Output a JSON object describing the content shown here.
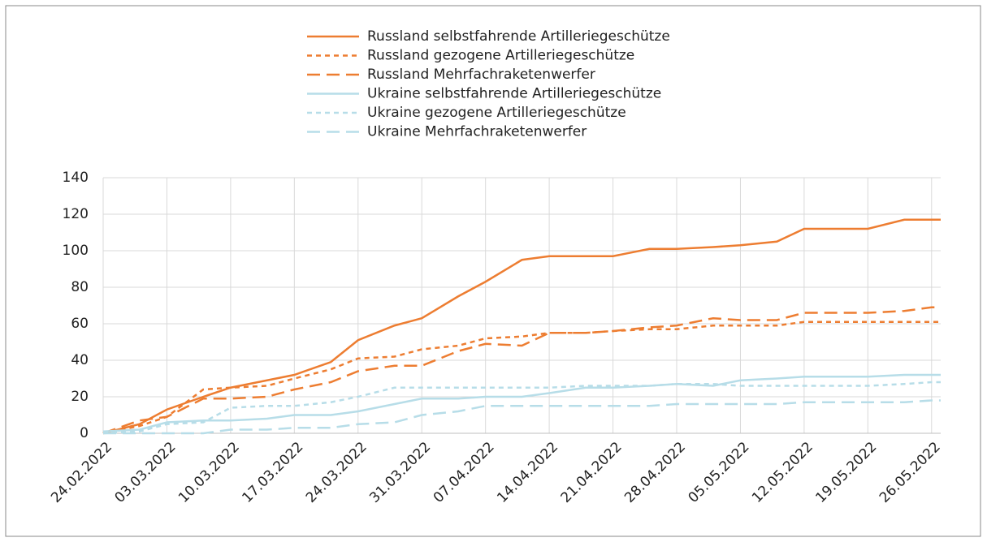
{
  "chart_data": {
    "type": "line",
    "x": [
      "24.02.2022",
      "28.02.2022",
      "03.03.2022",
      "07.03.2022",
      "10.03.2022",
      "14.03.2022",
      "17.03.2022",
      "21.03.2022",
      "24.03.2022",
      "28.03.2022",
      "31.03.2022",
      "04.04.2022",
      "07.04.2022",
      "11.04.2022",
      "14.04.2022",
      "18.04.2022",
      "21.04.2022",
      "25.04.2022",
      "28.04.2022",
      "02.05.2022",
      "05.05.2022",
      "09.05.2022",
      "12.05.2022",
      "16.05.2022",
      "19.05.2022",
      "23.05.2022",
      "26.05.2022",
      "27.05.2022"
    ],
    "series": [
      {
        "name": "Russland selbstfahrende Artilleriegeschütze",
        "color": "#ed7d31",
        "dash": "solid",
        "values": [
          0,
          5,
          13,
          20,
          25,
          29,
          32,
          39,
          51,
          59,
          63,
          75,
          83,
          95,
          97,
          97,
          97,
          101,
          101,
          102,
          103,
          105,
          112,
          112,
          112,
          117,
          117,
          117
        ]
      },
      {
        "name": "Russland gezogene Artilleriegeschütze",
        "color": "#ed7d31",
        "dash": "dot",
        "values": [
          0,
          4,
          9,
          24,
          25,
          26,
          30,
          35,
          41,
          42,
          46,
          48,
          52,
          53,
          55,
          55,
          56,
          57,
          57,
          59,
          59,
          59,
          61,
          61,
          61,
          61,
          61,
          61
        ]
      },
      {
        "name": "Russland Mehrfachraketenwerfer",
        "color": "#ed7d31",
        "dash": "dash",
        "values": [
          0,
          7,
          9,
          19,
          19,
          20,
          24,
          28,
          34,
          37,
          37,
          45,
          49,
          48,
          55,
          55,
          56,
          58,
          59,
          63,
          62,
          62,
          66,
          66,
          66,
          67,
          69,
          69
        ]
      },
      {
        "name": "Ukraine selbstfahrende Artilleriegeschütze",
        "color": "#b7dde8",
        "dash": "solid",
        "values": [
          1,
          2,
          6,
          7,
          7,
          8,
          10,
          10,
          12,
          16,
          19,
          19,
          20,
          20,
          22,
          25,
          25,
          26,
          27,
          26,
          29,
          30,
          31,
          31,
          31,
          32,
          32,
          32
        ]
      },
      {
        "name": "Ukraine gezogene Artilleriegeschütze",
        "color": "#b7dde8",
        "dash": "dot",
        "values": [
          0,
          1,
          5,
          6,
          14,
          15,
          15,
          17,
          20,
          25,
          25,
          25,
          25,
          25,
          25,
          26,
          26,
          26,
          27,
          27,
          26,
          26,
          26,
          26,
          26,
          27,
          28,
          28
        ]
      },
      {
        "name": "Ukraine Mehrfachraketenwerfer",
        "color": "#b7dde8",
        "dash": "dash",
        "values": [
          0,
          0,
          0,
          0,
          2,
          2,
          3,
          3,
          5,
          6,
          10,
          12,
          15,
          15,
          15,
          15,
          15,
          15,
          16,
          16,
          16,
          16,
          17,
          17,
          17,
          17,
          18,
          18
        ]
      }
    ],
    "xlim": [
      "24.02.2022",
      "27.05.2022"
    ],
    "xticks": [
      "24.02.2022",
      "03.03.2022",
      "10.03.2022",
      "17.03.2022",
      "24.03.2022",
      "31.03.2022",
      "07.04.2022",
      "14.04.2022",
      "21.04.2022",
      "28.04.2022",
      "05.05.2022",
      "12.05.2022",
      "19.05.2022",
      "26.05.2022"
    ],
    "ylim": [
      0,
      140
    ],
    "yticks": [
      0,
      20,
      40,
      60,
      80,
      100,
      120,
      140
    ],
    "grid": true
  }
}
